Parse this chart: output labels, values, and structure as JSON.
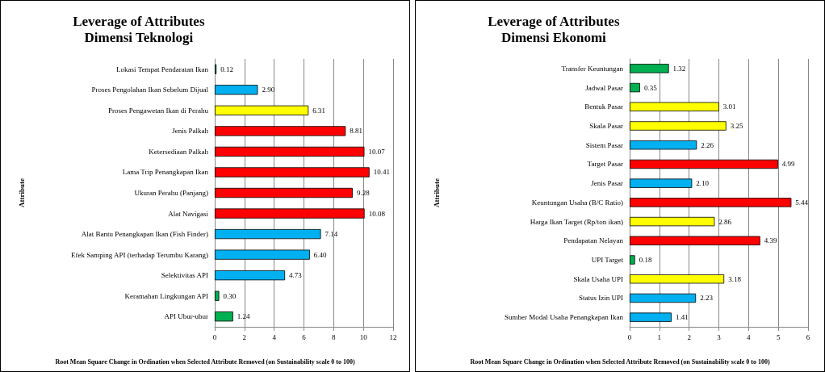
{
  "chart_data": [
    {
      "type": "bar",
      "orientation": "horizontal",
      "title": "Leverage of Attributes\nDimensi Teknologi",
      "ylabel": "Attribute",
      "xlabel": "Root Mean Square Change in Ordination when Selected Attribute Removed (on Sustainability scale 0 to 100)",
      "categories": [
        "Lokasi Tempat Pendaratan Ikan",
        "Proses Pengolahan Ikan Sebelum Dijual",
        "Proses Pengawetan Ikan di Perahu",
        "Jenis Palkah",
        "Ketersediaan Palkah",
        "Lama Trip Penangkapan Ikan",
        "Ukuran Perahu (Panjang)",
        "Alat Navigasi",
        "Alat Bantu Penangkapan Ikan (Fish Finder)",
        "Efek Samping API (terhadap Terumbu Karang)",
        "Selektivitas API",
        "Keramahan Lingkungan API",
        "API Ubur-ubur"
      ],
      "values": [
        0.12,
        2.9,
        6.31,
        8.81,
        10.07,
        10.41,
        9.28,
        10.08,
        7.14,
        6.4,
        4.73,
        0.3,
        1.24
      ],
      "value_labels": [
        "0.12",
        "2.90",
        "6.31",
        "8.81",
        "10.07",
        "10.41",
        "9.28",
        "10.08",
        "7.14",
        "6.40",
        "4.73",
        "0.30",
        "1.24"
      ],
      "colors": [
        "#00b050",
        "#00b0f0",
        "#ffff00",
        "#ff0000",
        "#ff0000",
        "#ff0000",
        "#ff0000",
        "#ff0000",
        "#00b0f0",
        "#00b0f0",
        "#00b0f0",
        "#00b050",
        "#00b050"
      ],
      "xlim": [
        0,
        12
      ],
      "xticks": [
        0,
        2,
        4,
        6,
        8,
        10,
        12
      ],
      "grid": "x"
    },
    {
      "type": "bar",
      "orientation": "horizontal",
      "title": "Leverage of Attributes\nDimensi Ekonomi",
      "ylabel": "Attribute",
      "xlabel": "Root Mean Square Change in Ordination when Selected Attribute Removed (on Sustainability scale 0 to 100)",
      "categories": [
        "Transfer Keuntungan",
        "Jadwal Pasar",
        "Bentuk Pasar",
        "Skala Pasar",
        "Sistem Pasar",
        "Target Pasar",
        "Jenis Pasar",
        "Keuntungan Usaha (B/C Ratio)",
        "Harga Ikan Target (Rp/ton ikan)",
        "Pendapatan Nelayan",
        "UPI Target",
        "Skala Usaha UPI",
        "Status Izin UPI",
        "Sumber Modal Usaha Penangkapan Ikan"
      ],
      "values": [
        1.32,
        0.35,
        3.01,
        3.25,
        2.26,
        4.99,
        2.1,
        5.44,
        2.86,
        4.39,
        0.18,
        3.18,
        2.23,
        1.41
      ],
      "value_labels": [
        "1.32",
        "0.35",
        "3.01",
        "3.25",
        "2.26",
        "4.99",
        "2.10",
        "5.44",
        "2.86",
        "4.39",
        "0.18",
        "3.18",
        "2.23",
        "1.41"
      ],
      "colors": [
        "#00b050",
        "#00b050",
        "#ffff00",
        "#ffff00",
        "#00b0f0",
        "#ff0000",
        "#00b0f0",
        "#ff0000",
        "#ffff00",
        "#ff0000",
        "#00b050",
        "#ffff00",
        "#00b0f0",
        "#00b0f0"
      ],
      "xlim": [
        0,
        6
      ],
      "xticks": [
        0,
        1,
        2,
        3,
        4,
        5,
        6
      ],
      "grid": "x"
    }
  ]
}
